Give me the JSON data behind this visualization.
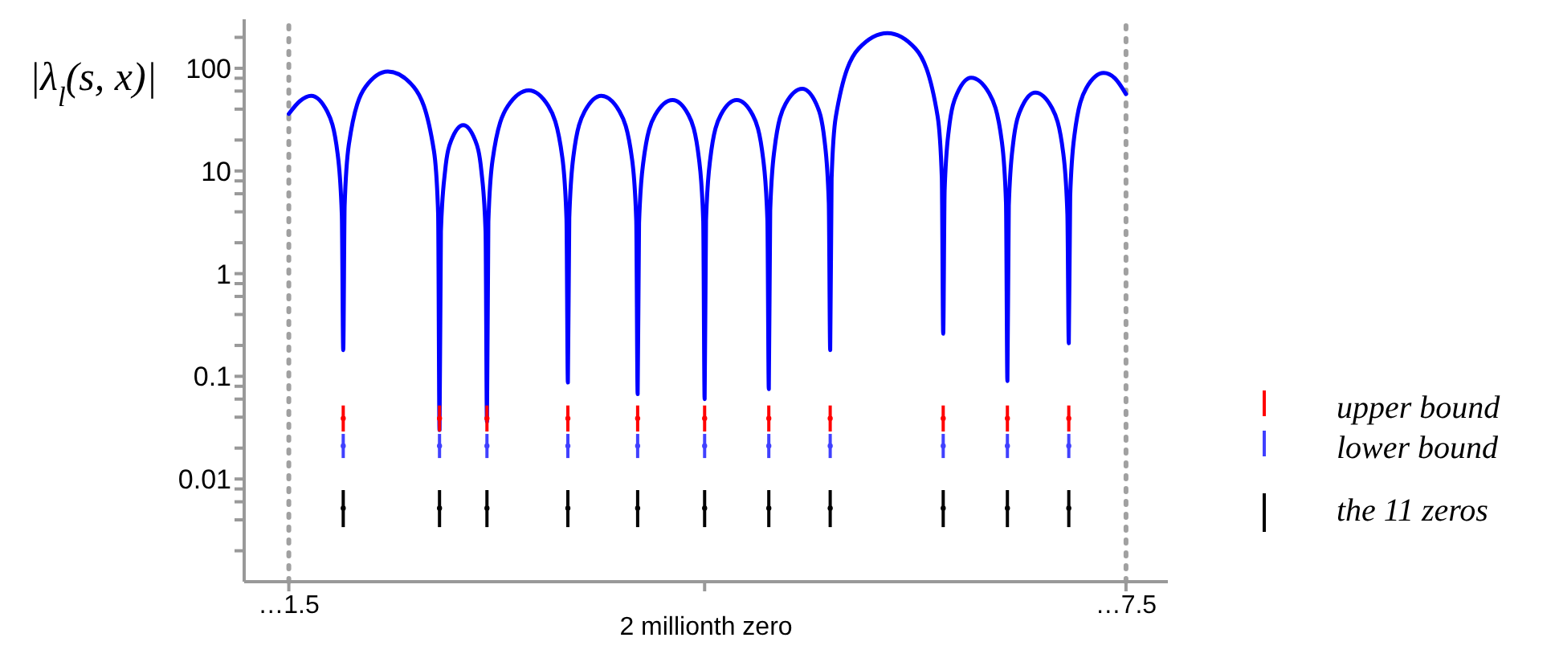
{
  "chart_data": {
    "type": "line",
    "ylabel": "|λ$_{l}$(s, x)|",
    "log": "y",
    "legend": "right",
    "xlim": [
      1.18,
      7.8
    ],
    "xlabel": "2 millionth zero",
    "xticks": [
      {
        "value": 1.5,
        "label": "…1.5"
      },
      {
        "value": 4.48,
        "label": null
      },
      {
        "value": 7.5,
        "label": "…7.5"
      }
    ],
    "ylim": [
      0.001,
      300
    ],
    "yticks": [
      {
        "value": 0.002,
        "label": null
      },
      {
        "value": 0.004,
        "label": null
      },
      {
        "value": 0.006,
        "label": null
      },
      {
        "value": 0.008,
        "label": null
      },
      0.01,
      {
        "value": 0.02,
        "label": null
      },
      {
        "value": 0.04,
        "label": null
      },
      {
        "value": 0.06,
        "label": null
      },
      {
        "value": 0.08,
        "label": null
      },
      0.1,
      {
        "value": 0.2,
        "label": null
      },
      {
        "value": 0.4,
        "label": null
      },
      {
        "value": 0.6,
        "label": null
      },
      {
        "value": 0.8,
        "label": null
      },
      1,
      {
        "value": 2,
        "label": null
      },
      {
        "value": 4,
        "label": null
      },
      {
        "value": 6,
        "label": null
      },
      {
        "value": 8,
        "label": null
      },
      10,
      {
        "value": 20,
        "label": null
      },
      {
        "value": 40,
        "label": null
      },
      {
        "value": 60,
        "label": null
      },
      {
        "value": 80,
        "label": null
      },
      100,
      {
        "value": 200,
        "label": null
      }
    ],
    "ref_lines": [
      {
        "axis": "x",
        "value": 1.5,
        "color": "#a0a0a0",
        "line_style": "dotted"
      },
      {
        "axis": "x",
        "value": 7.5,
        "color": "#a0a0a0",
        "line_style": "dotted"
      }
    ],
    "series": [
      {
        "type": "line",
        "color": "#0000ff",
        "x": [
          1.5,
          1.58,
          1.66,
          1.775,
          1.85,
          1.88,
          1.89,
          1.9,
          1.93,
          2.05,
          2.21,
          2.395,
          2.54,
          2.57,
          2.58,
          2.59,
          2.62,
          2.665,
          2.75,
          2.835,
          2.88,
          2.91,
          2.92,
          2.93,
          2.96,
          3.07,
          3.22,
          3.36,
          3.46,
          3.49,
          3.5,
          3.51,
          3.54,
          3.62,
          3.74,
          3.87,
          3.96,
          3.99,
          4.0,
          4.01,
          4.04,
          4.125,
          4.25,
          4.365,
          4.44,
          4.47,
          4.48,
          4.49,
          4.52,
          4.595,
          4.71,
          4.825,
          4.9,
          4.93,
          4.94,
          4.95,
          4.98,
          5.06,
          5.18,
          5.28,
          5.34,
          5.37,
          5.38,
          5.39,
          5.42,
          5.585,
          5.79,
          5.99,
          6.15,
          6.18,
          6.19,
          6.2,
          6.23,
          6.29,
          6.39,
          6.52,
          6.61,
          6.64,
          6.65,
          6.66,
          6.69,
          6.75,
          6.85,
          6.97,
          7.05,
          7.08,
          7.09,
          7.1,
          7.13,
          7.215,
          7.34,
          7.42,
          7.5
        ],
        "values": [
          36,
          48,
          54,
          38,
          14.6,
          3.7,
          0.18,
          4.6,
          18,
          66,
          93,
          66,
          15.7,
          3.9,
          0.03,
          2.6,
          10,
          20,
          28,
          20,
          10,
          2.6,
          0.036,
          3.2,
          12.7,
          43,
          61,
          43,
          13.6,
          3.4,
          0.087,
          3.5,
          14,
          38,
          54,
          38,
          13,
          3.3,
          0.067,
          3.1,
          12,
          35,
          49,
          35,
          13,
          3.3,
          0.06,
          3.3,
          13,
          35,
          49,
          35,
          13,
          3.3,
          0.075,
          4.1,
          16,
          45,
          63,
          45,
          19.5,
          4.9,
          0.18,
          8.4,
          33.5,
          156,
          220,
          156,
          34,
          8.6,
          0.26,
          6.4,
          25,
          57,
          81,
          57,
          19.4,
          4.9,
          0.09,
          4.6,
          18,
          41,
          58,
          41,
          15,
          3.8,
          0.21,
          5.7,
          22,
          64,
          90,
          80,
          56
        ]
      },
      {
        "type": "scatter",
        "name": "upper bound",
        "color": "#ff0000",
        "marker": "circle",
        "errors": [
          [
            0.029,
            0.052
          ],
          [
            0.029,
            0.052
          ],
          [
            0.029,
            0.052
          ],
          [
            0.029,
            0.052
          ],
          [
            0.029,
            0.052
          ],
          [
            0.029,
            0.052
          ],
          [
            0.029,
            0.052
          ],
          [
            0.029,
            0.052
          ],
          [
            0.029,
            0.052
          ],
          [
            0.029,
            0.052
          ],
          [
            0.029,
            0.052
          ]
        ],
        "x": [
          1.89,
          2.58,
          2.92,
          3.5,
          4.0,
          4.48,
          4.94,
          5.38,
          6.19,
          6.65,
          7.09
        ],
        "values": [
          0.039,
          0.039,
          0.039,
          0.039,
          0.039,
          0.039,
          0.039,
          0.039,
          0.039,
          0.039,
          0.039
        ]
      },
      {
        "type": "scatter",
        "name": "lower bound",
        "color": "#4040ff",
        "marker": "circle",
        "errors": [
          [
            0.016,
            0.0275
          ],
          [
            0.016,
            0.0275
          ],
          [
            0.016,
            0.0275
          ],
          [
            0.016,
            0.0275
          ],
          [
            0.016,
            0.0275
          ],
          [
            0.016,
            0.0275
          ],
          [
            0.016,
            0.0275
          ],
          [
            0.016,
            0.0275
          ],
          [
            0.016,
            0.0275
          ],
          [
            0.016,
            0.0275
          ],
          [
            0.016,
            0.0275
          ]
        ],
        "x": [
          1.89,
          2.58,
          2.92,
          3.5,
          4.0,
          4.48,
          4.94,
          5.38,
          6.19,
          6.65,
          7.09
        ],
        "values": [
          0.021,
          0.021,
          0.021,
          0.021,
          0.021,
          0.021,
          0.021,
          0.021,
          0.021,
          0.021,
          0.021
        ]
      },
      {
        "type": "scatter",
        "name": "the 11 zeros",
        "color": "#000000",
        "marker": "circle",
        "errors": [
          [
            0.0034,
            0.0078
          ],
          [
            0.0034,
            0.0078
          ],
          [
            0.0034,
            0.0078
          ],
          [
            0.0034,
            0.0078
          ],
          [
            0.0034,
            0.0078
          ],
          [
            0.0034,
            0.0078
          ],
          [
            0.0034,
            0.0078
          ],
          [
            0.0034,
            0.0078
          ],
          [
            0.0034,
            0.0078
          ],
          [
            0.0034,
            0.0078
          ],
          [
            0.0034,
            0.0078
          ]
        ],
        "x": [
          1.89,
          2.58,
          2.92,
          3.5,
          4.0,
          4.48,
          4.94,
          5.38,
          6.19,
          6.65,
          7.09
        ],
        "values": [
          0.0052,
          0.0052,
          0.0052,
          0.0052,
          0.0052,
          0.0052,
          0.0052,
          0.0052,
          0.0052,
          0.0052,
          0.0052
        ]
      }
    ]
  }
}
